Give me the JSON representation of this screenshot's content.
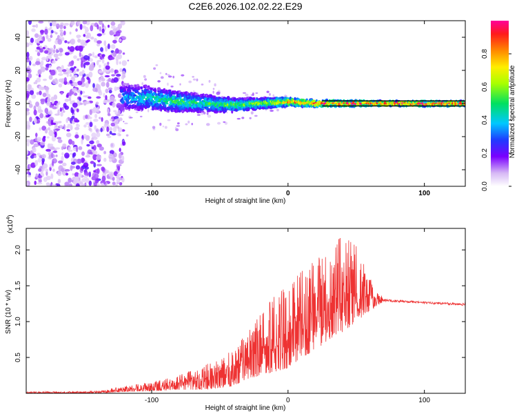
{
  "page": {
    "title": "C2E6.2026.102.02.22.E29"
  },
  "chart_data": [
    {
      "id": "spectrogram",
      "type": "heatmap",
      "xlabel": "Height of straight line (km)",
      "ylabel": "Frequency (Hz)",
      "xlim": [
        -192,
        130
      ],
      "ylim": [
        -50,
        50
      ],
      "xticks": [
        -100,
        0,
        100
      ],
      "yticks": [
        -40,
        -20,
        0,
        20,
        40
      ],
      "noise_region_x": [
        -192,
        -120
      ],
      "signal_band": [
        {
          "x": -120,
          "center": 4,
          "halfwidth": 8,
          "amplitude": 0.35
        },
        {
          "x": -100,
          "center": 3,
          "halfwidth": 7,
          "amplitude": 0.45
        },
        {
          "x": -80,
          "center": 1,
          "halfwidth": 6,
          "amplitude": 0.5
        },
        {
          "x": -60,
          "center": 0,
          "halfwidth": 5,
          "amplitude": 0.5
        },
        {
          "x": -40,
          "center": -1,
          "halfwidth": 4,
          "amplitude": 0.55
        },
        {
          "x": -20,
          "center": 0,
          "halfwidth": 3,
          "amplitude": 0.6
        },
        {
          "x": 0,
          "center": 1,
          "halfwidth": 2.5,
          "amplitude": 0.8
        },
        {
          "x": 20,
          "center": 0,
          "halfwidth": 2,
          "amplitude": 0.9
        },
        {
          "x": 60,
          "center": 0,
          "halfwidth": 1.5,
          "amplitude": 0.95
        },
        {
          "x": 125,
          "center": 0,
          "halfwidth": 1.5,
          "amplitude": 0.95
        }
      ],
      "colorbar": {
        "label": "Normalized spectral amplitude",
        "range": [
          0,
          1
        ],
        "ticks": [
          "0.0",
          "0.2",
          "0.4",
          "0.6",
          "0.8"
        ],
        "stops": [
          {
            "v": 0.0,
            "color": "#ffffff"
          },
          {
            "v": 0.08,
            "color": "#d6b8f5"
          },
          {
            "v": 0.18,
            "color": "#7a00ff"
          },
          {
            "v": 0.28,
            "color": "#1f3bff"
          },
          {
            "v": 0.38,
            "color": "#00c8ff"
          },
          {
            "v": 0.5,
            "color": "#00e060"
          },
          {
            "v": 0.62,
            "color": "#a8ff00"
          },
          {
            "v": 0.72,
            "color": "#ffee00"
          },
          {
            "v": 0.82,
            "color": "#ff8800"
          },
          {
            "v": 0.92,
            "color": "#ff1a1a"
          },
          {
            "v": 1.0,
            "color": "#ff0099"
          }
        ]
      }
    },
    {
      "id": "snr",
      "type": "line",
      "xlabel": "Height of straight line (km)",
      "ylabel": "SNR (10 * v/v)",
      "multiplier_label": "(x10",
      "multiplier_exp": "4",
      "xlim": [
        -192,
        130
      ],
      "ylim": [
        0,
        2.3
      ],
      "xticks": [
        -100,
        0,
        100
      ],
      "yticks": [
        0.5,
        1.0,
        1.5,
        2.0
      ],
      "ytick_labels": [
        "0.5",
        "1.0",
        "1.5",
        "2.0"
      ],
      "line_color": "#ee3333",
      "baseline_level": 0.01,
      "envelope": {
        "x": [
          -192,
          -140,
          -120,
          -100,
          -80,
          -60,
          -40,
          -30,
          -20,
          -10,
          0,
          10,
          20,
          30,
          40,
          50,
          60,
          70,
          80,
          100,
          130
        ],
        "low": [
          0.0,
          0.0,
          0.02,
          0.03,
          0.05,
          0.05,
          0.1,
          0.2,
          0.25,
          0.3,
          0.35,
          0.5,
          0.6,
          0.75,
          0.85,
          1.0,
          1.15,
          1.28,
          1.27,
          1.25,
          1.22
        ],
        "high": [
          0.02,
          0.03,
          0.1,
          0.15,
          0.25,
          0.4,
          0.6,
          0.85,
          1.1,
          1.35,
          1.5,
          1.7,
          1.85,
          2.0,
          2.2,
          2.05,
          1.6,
          1.32,
          1.3,
          1.28,
          1.26
        ]
      }
    }
  ]
}
